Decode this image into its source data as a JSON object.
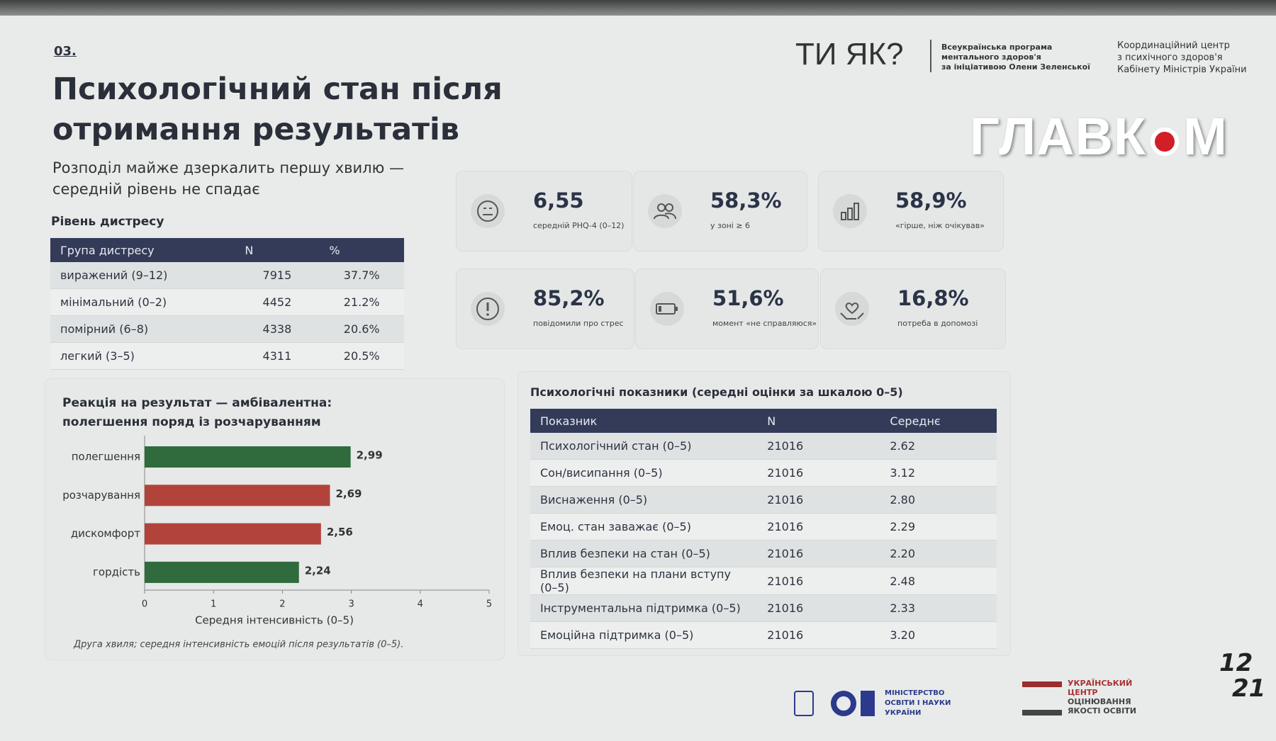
{
  "slide_number": "03.",
  "title_lines": [
    "Психологічний стан після",
    "отримання результатів"
  ],
  "subtitle_lines": [
    "Розподіл майже дзеркалить першу хвилю —",
    "середній рівень не спадає"
  ],
  "logo": {
    "brand": "ТИ ЯК?",
    "program_lines": [
      "Всеукраїнська програма",
      "ментального здоров'я",
      "за ініціативою Олени Зеленської"
    ],
    "center_lines": [
      "Координаційний центр",
      "з психічного здоров'я",
      "Кабінету Міністрів України"
    ]
  },
  "watermark": [
    "ГЛАВК",
    "М"
  ],
  "distress": {
    "heading": "Рівень дистресу",
    "columns": [
      "Група дистресу",
      "N",
      "%"
    ],
    "rows": [
      [
        "виражений (9–12)",
        "7915",
        "37.7%"
      ],
      [
        "мінімальний (0–2)",
        "4452",
        "21.2%"
      ],
      [
        "помірний (6–8)",
        "4338",
        "20.6%"
      ],
      [
        "легкий (3–5)",
        "4311",
        "20.5%"
      ]
    ]
  },
  "kpis": [
    {
      "value": "6,55",
      "label": "середній PHQ-4 (0–12)"
    },
    {
      "value": "58,3%",
      "label": "у зоні ≥ 6"
    },
    {
      "value": "58,9%",
      "label": "«гірше, ніж очікував»"
    },
    {
      "value": "85,2%",
      "label": "повідомили про стрес"
    },
    {
      "value": "51,6%",
      "label": "момент «не справляюся»"
    },
    {
      "value": "16,8%",
      "label": "потреба в допомозі"
    }
  ],
  "reaction_chart": {
    "type": "bar",
    "orientation": "horizontal",
    "title_lines": [
      "Реакція на результат — амбівалентна:",
      "полегшення поряд із розчаруванням"
    ],
    "categories": [
      "полегшення",
      "розчарування",
      "дискомфорт",
      "гордість"
    ],
    "values": [
      2.99,
      2.69,
      2.56,
      2.24
    ],
    "value_labels": [
      "2,99",
      "2,69",
      "2,56",
      "2,24"
    ],
    "colors": [
      "#2f6b3c",
      "#b2433b",
      "#b2433b",
      "#2f6b3c"
    ],
    "xlim": [
      0,
      5
    ],
    "xticks": [
      0,
      1,
      2,
      3,
      4,
      5
    ],
    "xlabel": "Середня інтенсивність (0–5)",
    "note": "Друга хвиля; середня інтенсивність емоцій після результатів (0–5)."
  },
  "indicators": {
    "heading": "Психологічні показники (середні оцінки за шкалою 0–5)",
    "columns": [
      "Показник",
      "N",
      "Середнє"
    ],
    "rows": [
      [
        "Психологічний стан (0–5)",
        "21016",
        "2.62"
      ],
      [
        "Сон/висипання (0–5)",
        "21016",
        "3.12"
      ],
      [
        "Виснаження (0–5)",
        "21016",
        "2.80"
      ],
      [
        "Емоц. стан заважає (0–5)",
        "21016",
        "2.29"
      ],
      [
        "Вплив безпеки на стан (0–5)",
        "21016",
        "2.20"
      ],
      [
        "Вплив безпеки на плани вступу (0–5)",
        "21016",
        "2.48"
      ],
      [
        "Інструментальна підтримка (0–5)",
        "21016",
        "2.33"
      ],
      [
        "Емоційна підтримка (0–5)",
        "21016",
        "3.20"
      ]
    ]
  },
  "footer": {
    "ministry_lines": [
      "МІНІСТЕРСТВО",
      "ОСВІТИ І НАУКИ",
      "УКРАЇНИ"
    ],
    "center_lines": [
      "УКРАЇНСЬКИЙ",
      "ЦЕНТР",
      "ОЦІНЮВАННЯ",
      "ЯКОСТІ ОСВІТИ"
    ],
    "anniversary": [
      "12",
      "21"
    ]
  }
}
